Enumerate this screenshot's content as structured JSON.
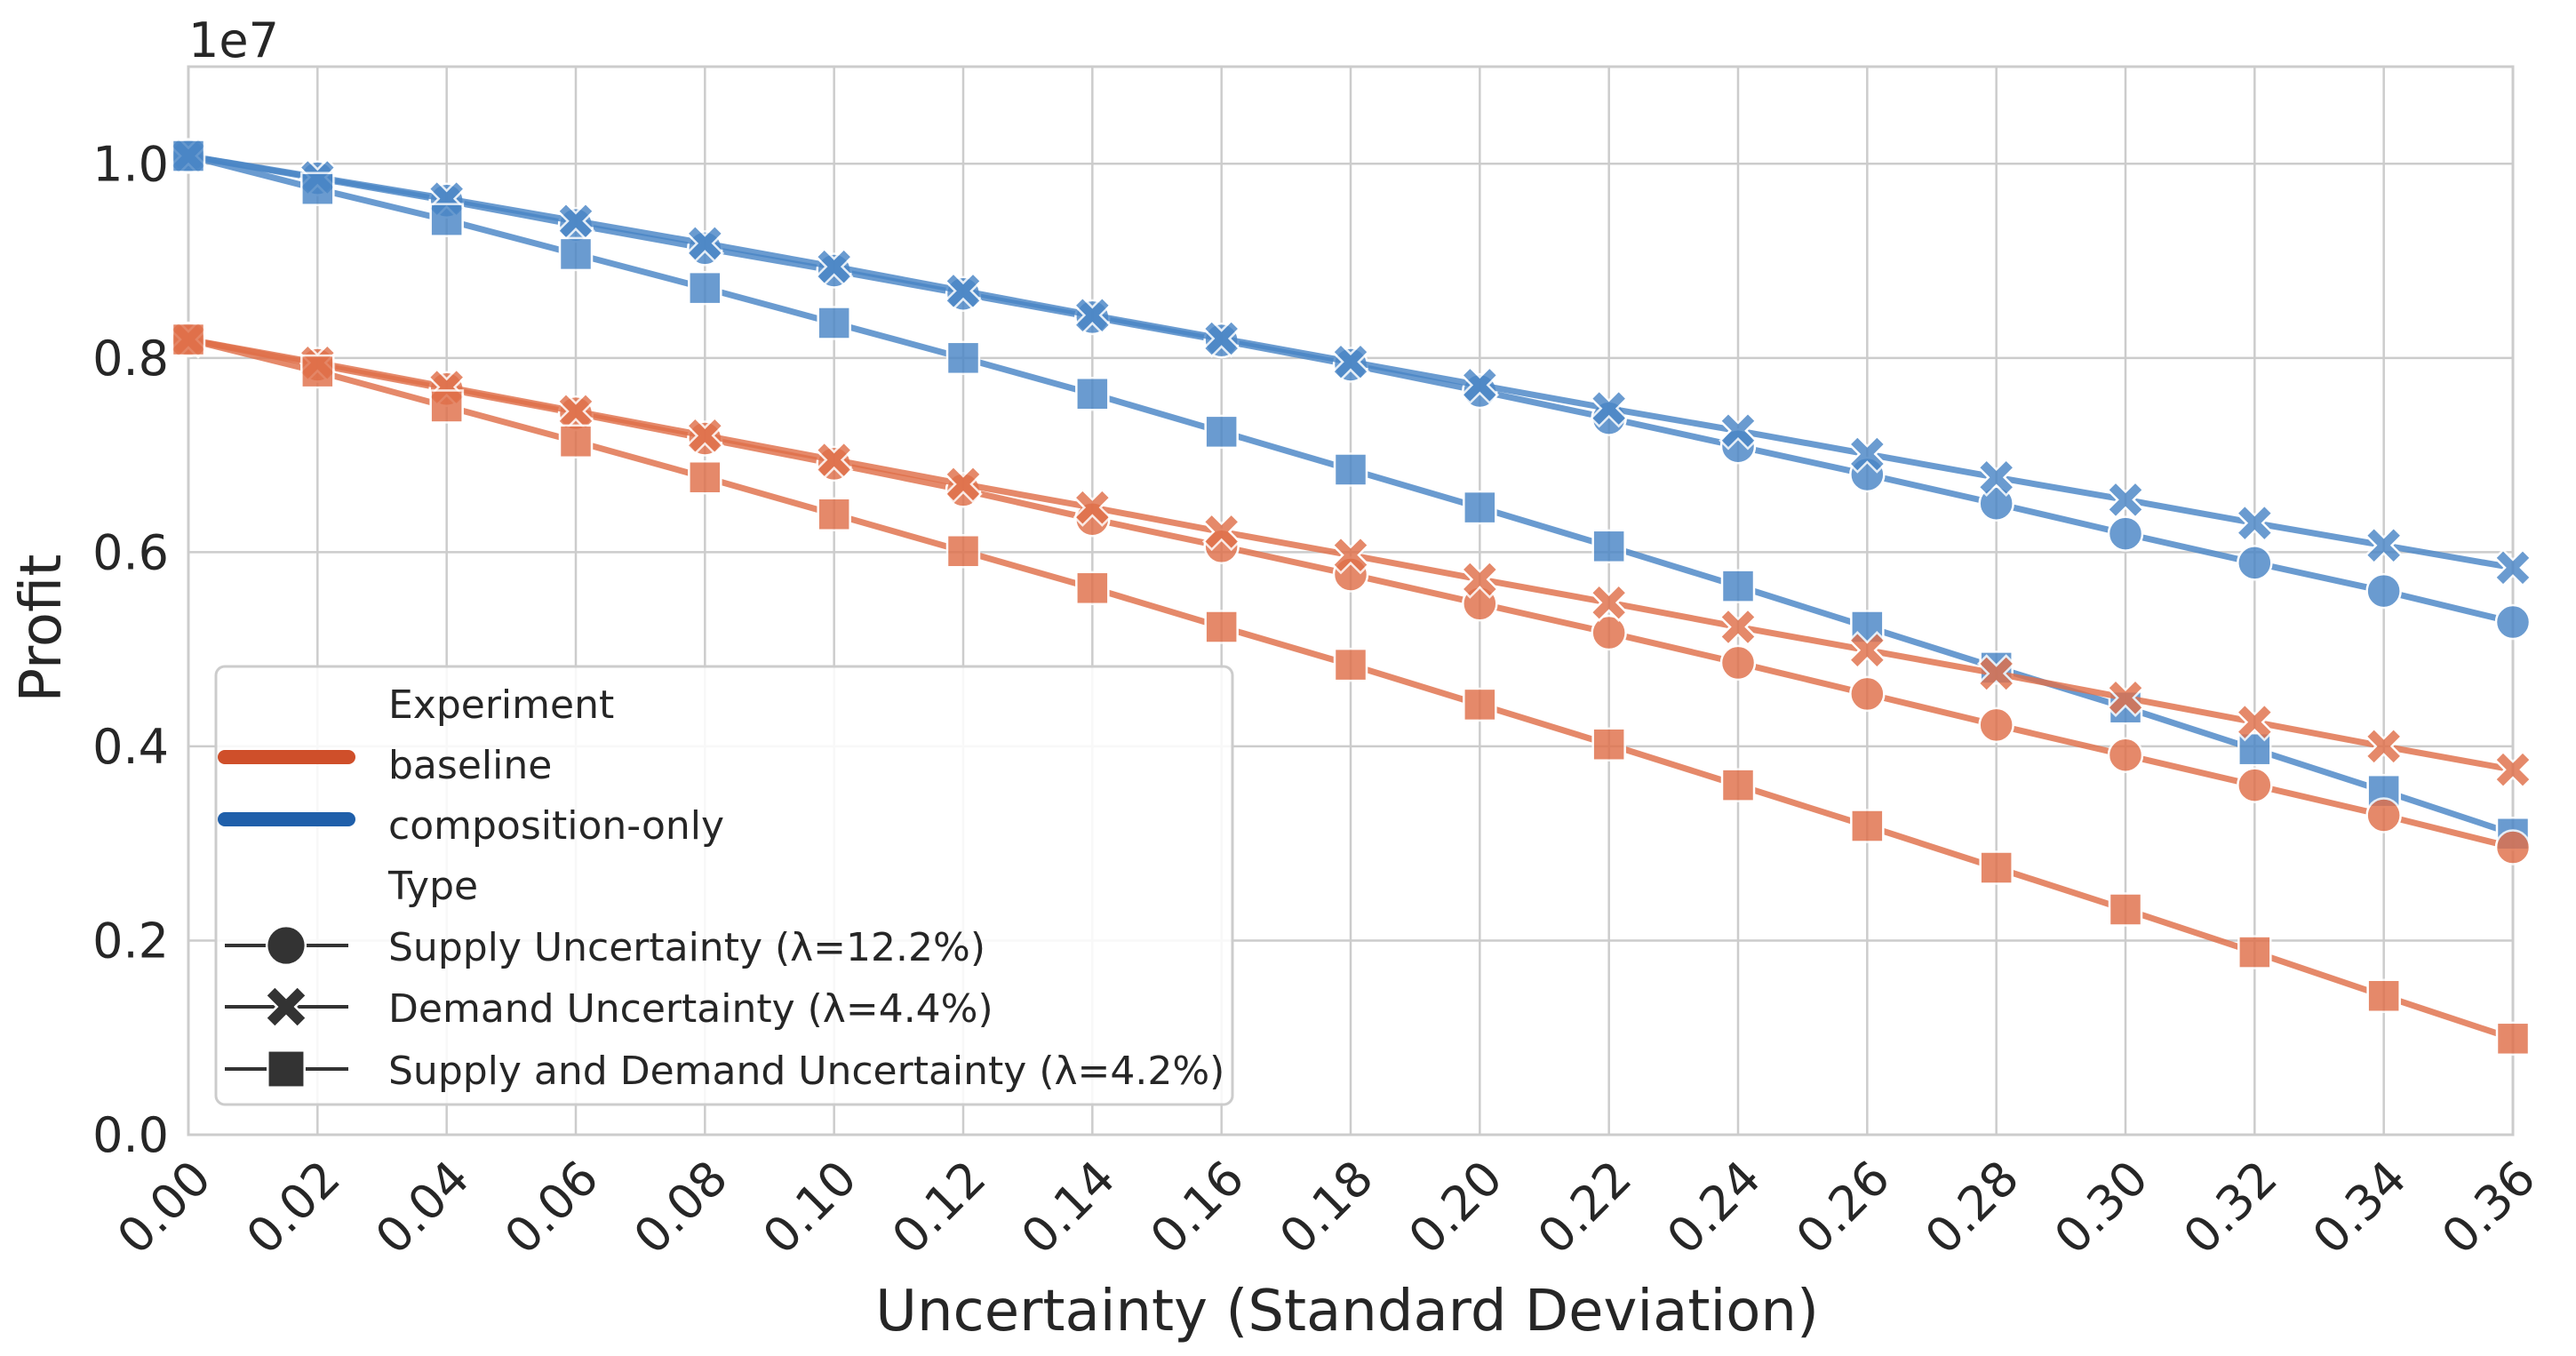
{
  "chart_data": {
    "type": "line",
    "title": "",
    "xlabel": "Uncertainty (Standard Deviation)",
    "ylabel": "Profit",
    "y_offset_label": "1e7",
    "xlim": [
      0.0,
      0.36
    ],
    "ylim": [
      0.0,
      1.1
    ],
    "grid": true,
    "x": [
      0.0,
      0.02,
      0.04,
      0.06,
      0.08,
      0.1,
      0.12,
      0.14,
      0.16,
      0.18,
      0.2,
      0.22,
      0.24,
      0.26,
      0.28,
      0.3,
      0.32,
      0.34,
      0.36
    ],
    "x_tick_labels": [
      "0.00",
      "0.02",
      "0.04",
      "0.06",
      "0.08",
      "0.10",
      "0.12",
      "0.14",
      "0.16",
      "0.18",
      "0.20",
      "0.22",
      "0.24",
      "0.26",
      "0.28",
      "0.30",
      "0.32",
      "0.34",
      "0.36"
    ],
    "y_ticks": [
      0.0,
      0.2,
      0.4,
      0.6,
      0.8,
      1.0
    ],
    "y_tick_labels": [
      "0.0",
      "0.2",
      "0.4",
      "0.6",
      "0.8",
      "1.0"
    ],
    "legend": {
      "location": "lower-left",
      "experiment_title": "Experiment",
      "type_title": "Type",
      "experiments": [
        {
          "key": "baseline",
          "label": "baseline",
          "color": "#cf4f2a"
        },
        {
          "key": "composition",
          "label": "composition-only",
          "color": "#1f5faa"
        }
      ],
      "types": [
        {
          "key": "supply",
          "label": "Supply Uncertainty (λ=12.2%)",
          "marker": "circle"
        },
        {
          "key": "demand",
          "label": "Demand Uncertainty (λ=4.4%)",
          "marker": "x"
        },
        {
          "key": "both",
          "label": "Supply and Demand Uncertainty (λ=4.2%)",
          "marker": "square"
        }
      ],
      "marker_color": "#333333"
    },
    "series": [
      {
        "name": "composition-only / Supply Uncertainty (λ=12.2%)",
        "experiment": "composition",
        "type": "supply",
        "color": "#4a86c6",
        "values": [
          1.008,
          0.985,
          0.962,
          0.937,
          0.913,
          0.89,
          0.866,
          0.842,
          0.818,
          0.793,
          0.766,
          0.738,
          0.709,
          0.68,
          0.65,
          0.619,
          0.589,
          0.56,
          0.528
        ]
      },
      {
        "name": "composition-only / Demand Uncertainty (λ=4.4%)",
        "experiment": "composition",
        "type": "demand",
        "color": "#4a86c6",
        "values": [
          1.008,
          0.986,
          0.964,
          0.941,
          0.918,
          0.894,
          0.869,
          0.844,
          0.82,
          0.796,
          0.772,
          0.748,
          0.725,
          0.701,
          0.677,
          0.654,
          0.63,
          0.607,
          0.584
        ]
      },
      {
        "name": "composition-only / Supply and Demand Uncertainty (λ=4.2%)",
        "experiment": "composition",
        "type": "both",
        "color": "#4a86c6",
        "values": [
          1.008,
          0.974,
          0.942,
          0.907,
          0.872,
          0.836,
          0.8,
          0.763,
          0.724,
          0.685,
          0.646,
          0.606,
          0.565,
          0.523,
          0.481,
          0.44,
          0.397,
          0.354,
          0.31
        ]
      },
      {
        "name": "baseline / Supply Uncertainty (λ=12.2%)",
        "experiment": "baseline",
        "type": "supply",
        "color": "#e0704a",
        "values": [
          0.819,
          0.793,
          0.768,
          0.743,
          0.717,
          0.691,
          0.664,
          0.634,
          0.606,
          0.577,
          0.547,
          0.517,
          0.486,
          0.454,
          0.422,
          0.391,
          0.36,
          0.329,
          0.296
        ]
      },
      {
        "name": "baseline / Demand Uncertainty (λ=4.4%)",
        "experiment": "baseline",
        "type": "demand",
        "color": "#e0704a",
        "values": [
          0.819,
          0.795,
          0.77,
          0.745,
          0.72,
          0.695,
          0.67,
          0.646,
          0.621,
          0.597,
          0.572,
          0.548,
          0.523,
          0.499,
          0.475,
          0.45,
          0.425,
          0.4,
          0.376
        ]
      },
      {
        "name": "baseline / Supply and Demand Uncertainty (λ=4.2%)",
        "experiment": "baseline",
        "type": "both",
        "color": "#e0704a",
        "values": [
          0.819,
          0.786,
          0.75,
          0.714,
          0.677,
          0.639,
          0.601,
          0.563,
          0.523,
          0.484,
          0.443,
          0.402,
          0.36,
          0.318,
          0.275,
          0.232,
          0.188,
          0.143,
          0.099
        ]
      }
    ]
  }
}
